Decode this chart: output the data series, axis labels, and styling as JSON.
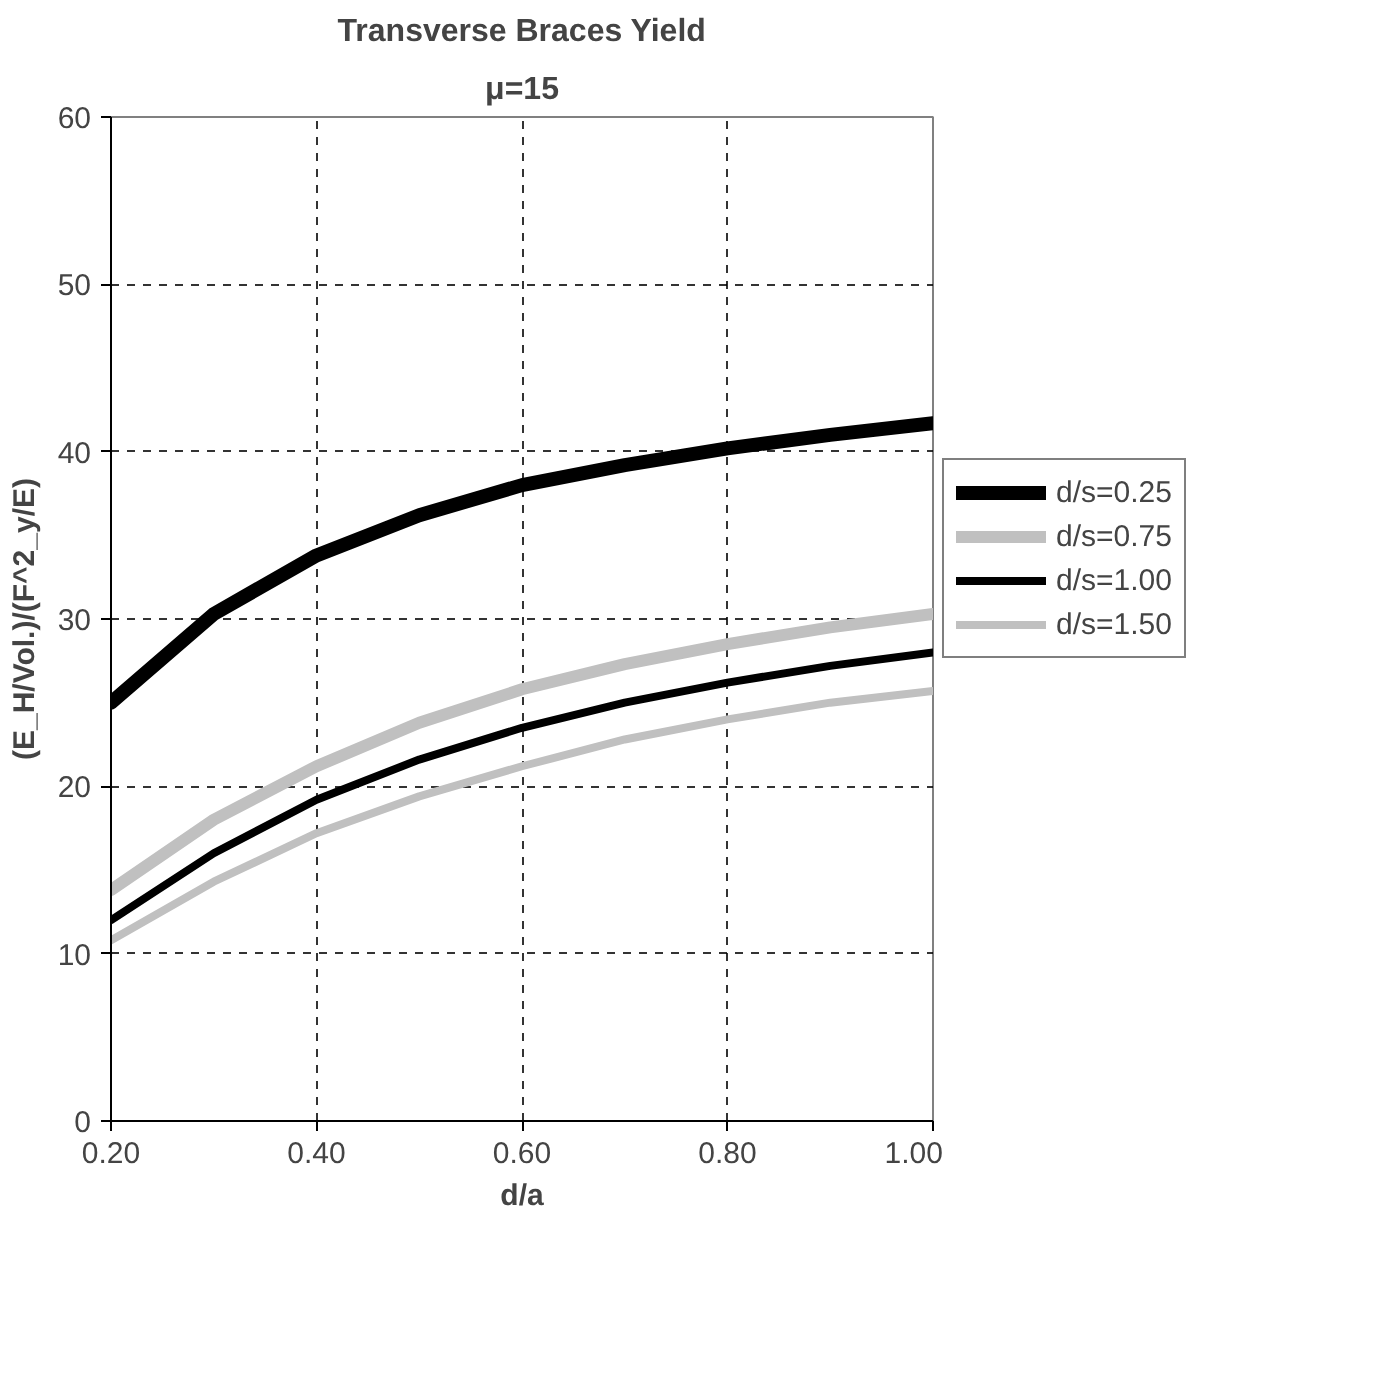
{
  "chart_data": {
    "type": "line",
    "title": "Transverse Braces Yield",
    "subtitle": "μ=15",
    "xlabel": "d/a",
    "ylabel": "(E_H/Vol.)/(F^2_y/E)",
    "x": [
      0.2,
      0.3,
      0.4,
      0.5,
      0.6,
      0.7,
      0.8,
      0.9,
      1.0
    ],
    "series": [
      {
        "name": "d/s=0.25",
        "color": "#000000",
        "values": [
          25.0,
          30.3,
          33.8,
          36.2,
          38.0,
          39.2,
          40.2,
          41.0,
          41.7
        ]
      },
      {
        "name": "d/s=0.75",
        "color": "#c0c0c0",
        "values": [
          13.8,
          18.0,
          21.2,
          23.8,
          25.8,
          27.3,
          28.5,
          29.5,
          30.3
        ]
      },
      {
        "name": "d/s=1.00",
        "color": "#000000",
        "values": [
          12.0,
          16.0,
          19.2,
          21.6,
          23.5,
          25.0,
          26.2,
          27.2,
          28.0
        ]
      },
      {
        "name": "d/s=1.50",
        "color": "#c0c0c0",
        "values": [
          10.8,
          14.3,
          17.2,
          19.4,
          21.2,
          22.8,
          24.0,
          25.0,
          25.7
        ]
      }
    ],
    "xlim": [
      0.2,
      1.0
    ],
    "xticks": [
      {
        "value": 0.2,
        "label": "0.20"
      },
      {
        "value": 0.4,
        "label": "0.40"
      },
      {
        "value": 0.6,
        "label": "0.60"
      },
      {
        "value": 0.8,
        "label": "0.80"
      },
      {
        "value": 1.0,
        "label": "1.00"
      }
    ],
    "ylim": [
      0,
      60
    ],
    "yticks": [
      0,
      10,
      20,
      30,
      40,
      50,
      60
    ],
    "grid": true,
    "legend": "right",
    "marker": "none",
    "line_style": "solid"
  }
}
